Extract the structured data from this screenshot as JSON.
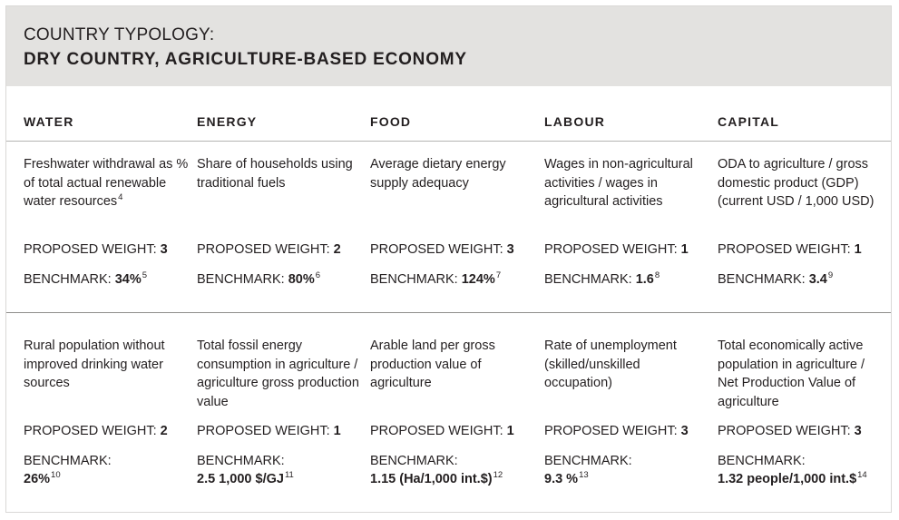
{
  "title": {
    "line1": "COUNTRY TYPOLOGY:",
    "line2": "DRY COUNTRY, AGRICULTURE-BASED ECONOMY"
  },
  "columns": [
    "WATER",
    "ENERGY",
    "FOOD",
    "LABOUR",
    "CAPITAL"
  ],
  "weight_label": "PROPOSED WEIGHT: ",
  "benchmark_label": "BENCHMARK: ",
  "benchmark_label_bare": "BENCHMARK:",
  "rows": [
    {
      "cells": [
        {
          "description": "Freshwater withdrawal as % of total actual renewable water resources",
          "description_note": "4",
          "weight": "3",
          "benchmark": "34%",
          "benchmark_note": "5"
        },
        {
          "description": "Share of households using traditional fuels",
          "description_note": "",
          "weight": "2",
          "benchmark": "80%",
          "benchmark_note": "6"
        },
        {
          "description": "Average dietary energy supply adequacy",
          "description_note": "",
          "weight": "3",
          "benchmark": "124%",
          "benchmark_note": "7"
        },
        {
          "description": "Wages in non-agricultural activities / wages in agricultural activities",
          "description_note": "",
          "weight": "1",
          "benchmark": "1.6",
          "benchmark_note": "8"
        },
        {
          "description": "ODA to agriculture / gross domestic product (GDP) (current USD / 1,000 USD)",
          "description_note": "",
          "weight": "1",
          "benchmark": "3.4",
          "benchmark_note": "9"
        }
      ]
    },
    {
      "cells": [
        {
          "description": "Rural population without improved drinking water sources",
          "weight": "2",
          "benchmark": "26%",
          "benchmark_note": "10"
        },
        {
          "description": "Total fossil energy consumption in agriculture / agriculture gross production value",
          "weight": "1",
          "benchmark": "2.5 1,000 $/GJ",
          "benchmark_note": "11"
        },
        {
          "description": "Arable land per gross production value of agriculture",
          "weight": "1",
          "benchmark": "1.15 (Ha/1,000 int.$)",
          "benchmark_note": "12"
        },
        {
          "description": "Rate of unemployment (skilled/unskilled occupation)",
          "weight": "3",
          "benchmark": "9.3 %",
          "benchmark_note": "13"
        },
        {
          "description": "Total economically active population in agriculture / Net Production Value of agriculture",
          "weight": "3",
          "benchmark": "1.32 people/1,000 int.$",
          "benchmark_note": "14"
        }
      ]
    }
  ]
}
